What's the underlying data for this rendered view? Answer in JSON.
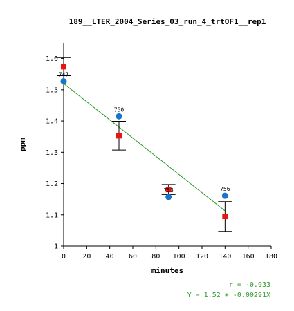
{
  "chart_data": {
    "type": "scatter",
    "title": "189__LTER_2004_Series_03_run_4_trtOF1__rep1",
    "xlabel": "minutes",
    "ylabel": "ppm",
    "xlim": [
      0,
      180
    ],
    "ylim": [
      1,
      1.65
    ],
    "x_ticks": [
      0,
      20,
      40,
      60,
      80,
      100,
      120,
      140,
      160,
      180
    ],
    "y_ticks": [
      1,
      1.1,
      1.2,
      1.3,
      1.4,
      1.5,
      1.6
    ],
    "x_tick_labels": [
      "0",
      "20",
      "40",
      "60",
      "80",
      "100",
      "120",
      "140",
      "160",
      "180"
    ],
    "y_tick_labels": [
      "1",
      "1.1",
      "1.2",
      "1.3",
      "1.4",
      "1.5",
      "1.6"
    ],
    "grid": false,
    "series": [
      {
        "marker": "circle",
        "color": "#1874cd",
        "points": [
          {
            "x": 0,
            "y": 1.527,
            "label": "747"
          },
          {
            "x": 48,
            "y": 1.415,
            "label": "750"
          },
          {
            "x": 91,
            "y": 1.157,
            "label": "753"
          },
          {
            "x": 140,
            "y": 1.161,
            "label": "756"
          }
        ]
      },
      {
        "marker": "square",
        "color": "#ee1111",
        "points": [
          {
            "x": 0,
            "y": 1.574,
            "err_low": 1.545,
            "err_high": 1.603
          },
          {
            "x": 48,
            "y": 1.353,
            "err_low": 1.307,
            "err_high": 1.399
          },
          {
            "x": 91,
            "y": 1.181,
            "err_low": 1.165,
            "err_high": 1.197
          },
          {
            "x": 140,
            "y": 1.095,
            "err_low": 1.047,
            "err_high": 1.142
          }
        ]
      }
    ],
    "fit_line": {
      "color": "#2e9a2e",
      "intercept": 1.52,
      "slope": -0.00291,
      "x_range": [
        0,
        140
      ]
    },
    "stats": {
      "r_text": "r = -0.933",
      "eq_text": "Y = 1.52 + -0.00291X"
    }
  }
}
